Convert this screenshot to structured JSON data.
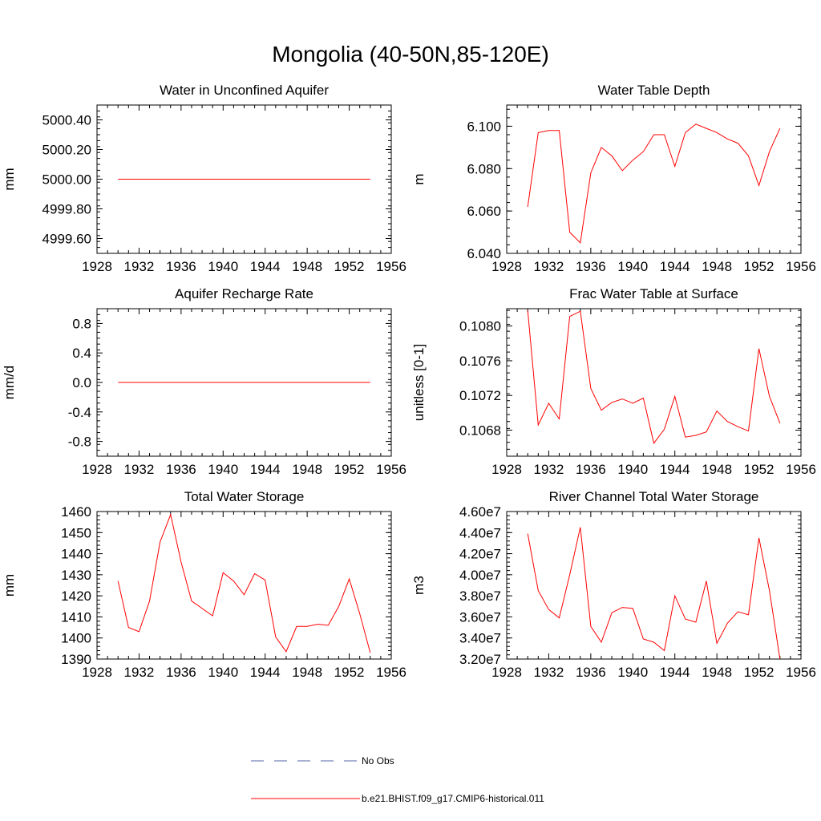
{
  "title": "Mongolia (40-50N,85-120E)",
  "years": [
    1930,
    1931,
    1932,
    1933,
    1934,
    1935,
    1936,
    1937,
    1938,
    1939,
    1940,
    1941,
    1942,
    1943,
    1944,
    1945,
    1946,
    1947,
    1948,
    1949,
    1950,
    1951,
    1952,
    1953,
    1954
  ],
  "legend": [
    {
      "label": "No Obs",
      "color": "#5566aa",
      "dash": true
    },
    {
      "label": "b.e21.BHIST.f09_g17.CMIP6-historical.011",
      "color": "#ff0000",
      "dash": false
    }
  ],
  "chart_data": [
    {
      "type": "line",
      "title": "Water in Unconfined Aquifer",
      "ylabel": "mm",
      "xlim": [
        1928,
        1956
      ],
      "xticks": [
        1928,
        1932,
        1936,
        1940,
        1944,
        1948,
        1952,
        1956
      ],
      "ylim": [
        4999.5,
        5000.5
      ],
      "yticks": [
        4999.6,
        4999.8,
        5000.0,
        5000.2,
        5000.4
      ],
      "ytick_labels": [
        "4999.60",
        "4999.80",
        "5000.00",
        "5000.20",
        "5000.40"
      ],
      "series": [
        {
          "name": "b.e21.BHIST.f09_g17.CMIP6-historical.011",
          "color": "#ff0000",
          "values": [
            5000,
            5000,
            5000,
            5000,
            5000,
            5000,
            5000,
            5000,
            5000,
            5000,
            5000,
            5000,
            5000,
            5000,
            5000,
            5000,
            5000,
            5000,
            5000,
            5000,
            5000,
            5000,
            5000,
            5000,
            5000
          ]
        }
      ]
    },
    {
      "type": "line",
      "title": "Water Table Depth",
      "ylabel": "m",
      "xlim": [
        1928,
        1956
      ],
      "xticks": [
        1928,
        1932,
        1936,
        1940,
        1944,
        1948,
        1952,
        1956
      ],
      "ylim": [
        6.04,
        6.11
      ],
      "yticks": [
        6.04,
        6.06,
        6.08,
        6.1
      ],
      "ytick_labels": [
        "6.040",
        "6.060",
        "6.080",
        "6.100"
      ],
      "series": [
        {
          "name": "b.e21.BHIST.f09_g17.CMIP6-historical.011",
          "color": "#ff0000",
          "values": [
            6.062,
            6.097,
            6.098,
            6.098,
            6.05,
            6.045,
            6.078,
            6.09,
            6.086,
            6.079,
            6.084,
            6.088,
            6.096,
            6.096,
            6.081,
            6.097,
            6.101,
            6.099,
            6.097,
            6.094,
            6.092,
            6.086,
            6.072,
            6.088,
            6.099
          ]
        }
      ]
    },
    {
      "type": "line",
      "title": "Aquifer Recharge Rate",
      "ylabel": "mm/d",
      "xlim": [
        1928,
        1956
      ],
      "xticks": [
        1928,
        1932,
        1936,
        1940,
        1944,
        1948,
        1952,
        1956
      ],
      "ylim": [
        -1.0,
        1.0
      ],
      "yticks": [
        -0.8,
        -0.4,
        0.0,
        0.4,
        0.8
      ],
      "ytick_labels": [
        "-0.8",
        "-0.4",
        "0.0",
        "0.4",
        "0.8"
      ],
      "series": [
        {
          "name": "b.e21.BHIST.f09_g17.CMIP6-historical.011",
          "color": "#ff0000",
          "values": [
            0,
            0,
            0,
            0,
            0,
            0,
            0,
            0,
            0,
            0,
            0,
            0,
            0,
            0,
            0,
            0,
            0,
            0,
            0,
            0,
            0,
            0,
            0,
            0,
            0
          ]
        }
      ]
    },
    {
      "type": "line",
      "title": "Frac Water Table at Surface",
      "ylabel": "unitless [0-1]",
      "xlim": [
        1928,
        1956
      ],
      "xticks": [
        1928,
        1932,
        1936,
        1940,
        1944,
        1948,
        1952,
        1956
      ],
      "ylim": [
        0.1065,
        0.1082
      ],
      "yticks": [
        0.1068,
        0.1072,
        0.1076,
        0.108
      ],
      "ytick_labels": [
        "0.1068",
        "0.1072",
        "0.1076",
        "0.1080"
      ],
      "series": [
        {
          "name": "b.e21.BHIST.f09_g17.CMIP6-historical.011",
          "color": "#ff0000",
          "values": [
            0.10818,
            0.10686,
            0.10711,
            0.10693,
            0.10811,
            0.10817,
            0.10728,
            0.10703,
            0.10712,
            0.10716,
            0.10711,
            0.10717,
            0.10665,
            0.10681,
            0.10719,
            0.10672,
            0.10674,
            0.10678,
            0.10702,
            0.1069,
            0.10684,
            0.10679,
            0.10774,
            0.10719,
            0.10688
          ]
        }
      ]
    },
    {
      "type": "line",
      "title": "Total Water Storage",
      "ylabel": "mm",
      "xlim": [
        1928,
        1956
      ],
      "xticks": [
        1928,
        1932,
        1936,
        1940,
        1944,
        1948,
        1952,
        1956
      ],
      "ylim": [
        1390,
        1460
      ],
      "yticks": [
        1390,
        1400,
        1410,
        1420,
        1430,
        1440,
        1450,
        1460
      ],
      "ytick_labels": [
        "1390",
        "1400",
        "1410",
        "1420",
        "1430",
        "1440",
        "1450",
        "1460"
      ],
      "series": [
        {
          "name": "b.e21.BHIST.f09_g17.CMIP6-historical.011",
          "color": "#ff0000",
          "values": [
            1427,
            1405,
            1403,
            1417.5,
            1445.5,
            1458.5,
            1436,
            1417.5,
            1414,
            1410.5,
            1431,
            1427,
            1420.5,
            1430.5,
            1427.5,
            1400.5,
            1393.5,
            1405.5,
            1405.5,
            1406.5,
            1406,
            1415,
            1428,
            1411.5,
            1393
          ]
        }
      ]
    },
    {
      "type": "line",
      "title": "River Channel Total Water Storage",
      "ylabel": "m3",
      "xlim": [
        1928,
        1956
      ],
      "xticks": [
        1928,
        1932,
        1936,
        1940,
        1944,
        1948,
        1952,
        1956
      ],
      "ylim": [
        32000000,
        46000000
      ],
      "yticks": [
        32000000,
        34000000,
        36000000,
        38000000,
        40000000,
        42000000,
        44000000,
        46000000
      ],
      "ytick_labels": [
        "3.20e7",
        "3.40e7",
        "3.60e7",
        "3.80e7",
        "4.00e7",
        "4.20e7",
        "4.40e7",
        "4.60e7"
      ],
      "series": [
        {
          "name": "b.e21.BHIST.f09_g17.CMIP6-historical.011",
          "color": "#ff0000",
          "values": [
            43900000,
            38500000,
            36700000,
            35900000,
            40000000,
            44500000,
            35100000,
            33600000,
            36400000,
            36900000,
            36800000,
            33900000,
            33600000,
            32800000,
            38000000,
            35800000,
            35500000,
            39400000,
            33500000,
            35400000,
            36500000,
            36200000,
            43500000,
            38500000,
            32000000
          ]
        }
      ]
    }
  ]
}
